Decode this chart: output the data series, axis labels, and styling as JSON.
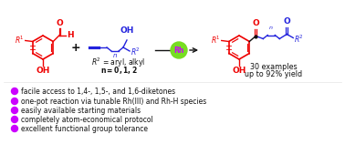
{
  "background_color": "#ffffff",
  "bullet_color": "#CC00FF",
  "bullet_points": [
    "facile access to 1,4-, 1,5-, and 1,6-diketones",
    "one-pot reaction via tunable Rh(III) and Rh-H species",
    "easily available starting materials",
    "completely atom-economical protocol",
    "excellent functional group tolerance"
  ],
  "rh_circle_color": "#77DD22",
  "rh_text_color": "#CC00FF",
  "red_color": "#EE0000",
  "blue_color": "#2222DD",
  "black_color": "#111111",
  "examples_text1": "30 examples",
  "examples_text2": "up to 92% yield",
  "r2_label": "R² = aryl, alkyl",
  "n_label": "n = 0, 1, 2"
}
